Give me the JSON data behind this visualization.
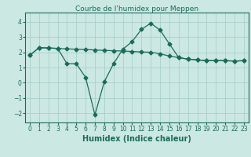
{
  "line1_x": [
    0,
    1,
    2,
    3,
    4,
    5,
    6,
    7,
    8,
    9,
    10,
    11,
    12,
    13,
    14,
    15,
    16,
    17,
    18,
    19,
    20,
    21,
    22,
    23
  ],
  "line1_y": [
    1.8,
    2.3,
    2.28,
    2.25,
    2.22,
    2.2,
    2.18,
    2.15,
    2.12,
    2.1,
    2.08,
    2.05,
    2.02,
    2.0,
    1.9,
    1.75,
    1.65,
    1.55,
    1.5,
    1.45,
    1.45,
    1.45,
    1.42,
    1.45
  ],
  "line2_x": [
    0,
    1,
    2,
    3,
    4,
    5,
    6,
    7,
    8,
    9,
    10,
    11,
    12,
    13,
    14,
    15,
    16,
    17,
    18,
    19,
    20,
    21,
    22,
    23
  ],
  "line2_y": [
    1.8,
    2.3,
    2.28,
    2.25,
    1.25,
    1.25,
    0.35,
    -2.1,
    0.05,
    1.25,
    2.2,
    2.7,
    3.5,
    3.9,
    3.45,
    2.55,
    1.65,
    1.55,
    1.5,
    1.45,
    1.45,
    1.45,
    1.42,
    1.45
  ],
  "line_color": "#1a6b5a",
  "marker": "D",
  "marker_size": 2.5,
  "title": "Courbe de l'humidex pour Meppen",
  "xlabel": "Humidex (Indice chaleur)",
  "ylabel": "",
  "xlim": [
    -0.5,
    23.5
  ],
  "ylim": [
    -2.6,
    4.6
  ],
  "yticks": [
    -2,
    -1,
    0,
    1,
    2,
    3,
    4
  ],
  "xticks": [
    0,
    1,
    2,
    3,
    4,
    5,
    6,
    7,
    8,
    9,
    10,
    11,
    12,
    13,
    14,
    15,
    16,
    17,
    18,
    19,
    20,
    21,
    22,
    23
  ],
  "bg_color": "#cce8e3",
  "grid_color": "#aacfca",
  "title_fontsize": 6.5,
  "label_fontsize": 7,
  "tick_fontsize": 5.5
}
